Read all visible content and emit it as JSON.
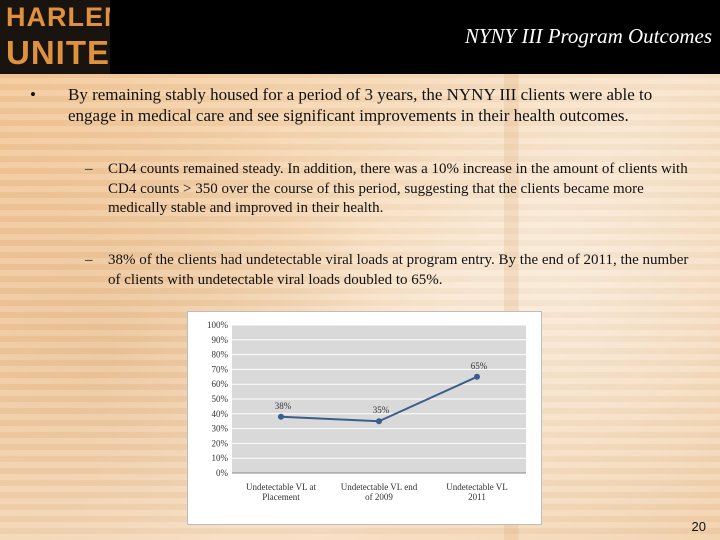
{
  "logo": {
    "line1": "HARLEM",
    "line2": "UNITED"
  },
  "slide": {
    "title": "NYNY III Program Outcomes",
    "bullet_symbol": "•",
    "dash_symbol": "–",
    "bullet": "By remaining stably housed for a period of 3 years, the NYNY III clients were able to engage in medical care and see significant improvements in their health outcomes.",
    "sub_bullets": [
      "CD4 counts remained steady.  In addition, there was a 10% increase in the amount of clients with CD4 counts > 350 over the course of this period, suggesting that the clients became more medically stable and improved in their health.",
      "38% of the clients had undetectable viral loads at program entry.  By the end of 2011, the number of clients with undetectable viral loads doubled to 65%."
    ],
    "page_number": "20"
  },
  "chart_data": {
    "type": "line",
    "categories": [
      [
        "Undetectable VL at",
        "Placement"
      ],
      [
        "Undetectable VL end",
        "of 2009"
      ],
      [
        "Undetectable VL",
        "2011"
      ]
    ],
    "values": [
      38,
      35,
      65
    ],
    "value_labels": [
      "38%",
      "35%",
      "65%"
    ],
    "y_ticks": [
      "0%",
      "10%",
      "20%",
      "30%",
      "40%",
      "50%",
      "60%",
      "70%",
      "80%",
      "90%",
      "100%"
    ],
    "ylim": [
      0,
      100
    ],
    "series_color": "#3a5e8c",
    "grid": true
  }
}
